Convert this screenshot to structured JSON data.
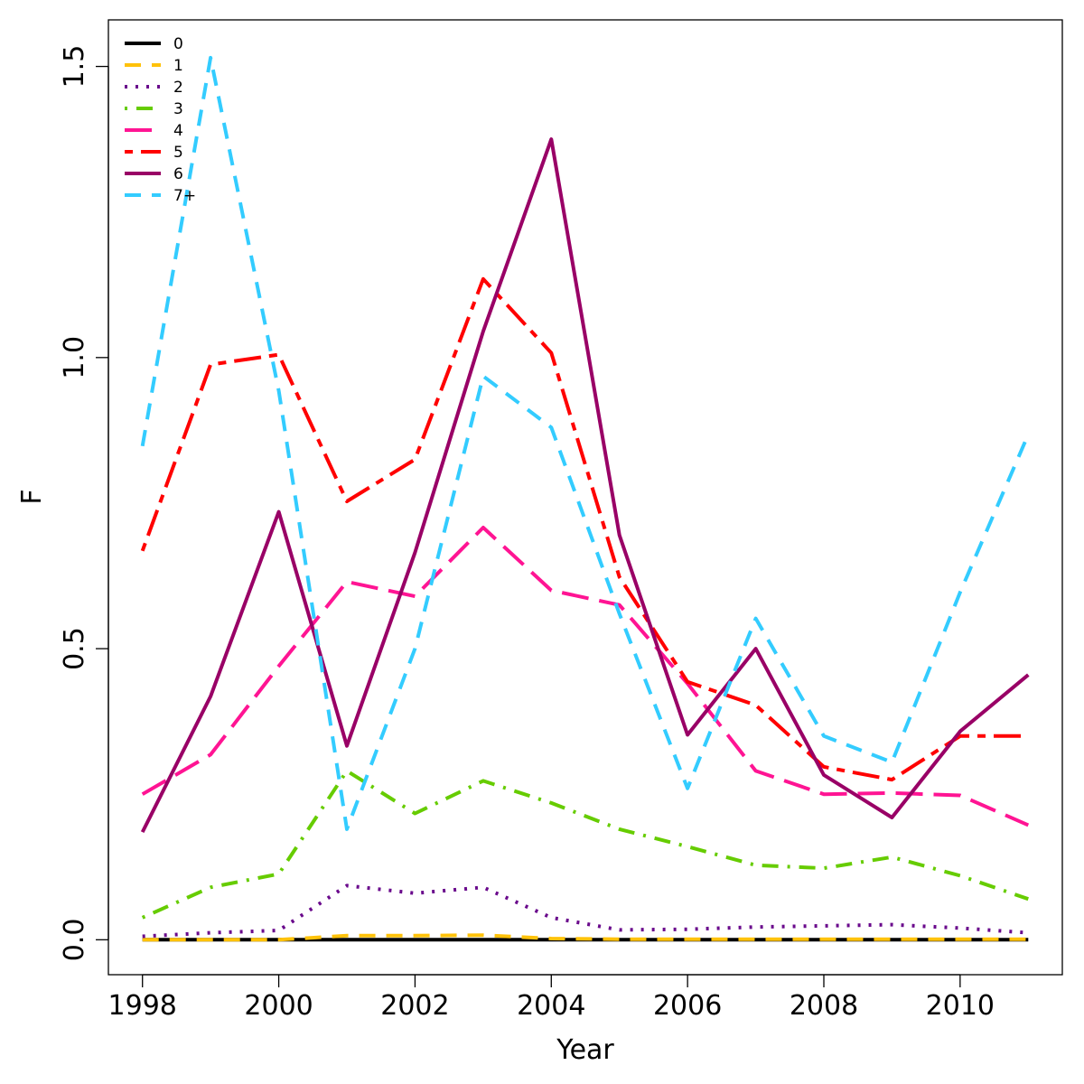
{
  "chart_data": {
    "type": "line",
    "xlabel": "Year",
    "ylabel": "F",
    "xlim": [
      1997.5,
      2011.5
    ],
    "ylim": [
      -0.06,
      1.58
    ],
    "xticks": [
      1998,
      2000,
      2002,
      2004,
      2006,
      2008,
      2010
    ],
    "yticks": [
      0.0,
      0.5,
      1.0,
      1.5
    ],
    "ytick_labels": [
      "0.0",
      "0.5",
      "1.0",
      "1.5"
    ],
    "legend_position": "top-left",
    "grid": false,
    "x": [
      1998,
      1999,
      2000,
      2001,
      2002,
      2003,
      2004,
      2005,
      2006,
      2007,
      2008,
      2009,
      2010,
      2011
    ],
    "series": [
      {
        "name": "0",
        "color": "#000000",
        "dash": "solid",
        "values": [
          0.0,
          0.0,
          0.0,
          0.0,
          0.0,
          0.0,
          0.0,
          0.0,
          0.0,
          0.0,
          0.0,
          0.0,
          0.0,
          0.0
        ]
      },
      {
        "name": "1",
        "color": "#FFC20A",
        "dash": "dashed",
        "values": [
          0.0,
          0.0,
          0.0,
          0.007,
          0.007,
          0.008,
          0.002,
          0.001,
          0.001,
          0.001,
          0.001,
          0.001,
          0.001,
          0.001
        ]
      },
      {
        "name": "2",
        "color": "#6A0A8C",
        "dash": "dotted",
        "values": [
          0.006,
          0.012,
          0.016,
          0.093,
          0.08,
          0.09,
          0.038,
          0.017,
          0.018,
          0.022,
          0.024,
          0.026,
          0.02,
          0.012
        ]
      },
      {
        "name": "3",
        "color": "#66CC00",
        "dash": "dotdash",
        "values": [
          0.038,
          0.09,
          0.113,
          0.29,
          0.217,
          0.273,
          0.235,
          0.19,
          0.16,
          0.128,
          0.123,
          0.142,
          0.11,
          0.07
        ]
      },
      {
        "name": "4",
        "color": "#FF1493",
        "dash": "longdash",
        "values": [
          0.25,
          0.318,
          0.47,
          0.615,
          0.59,
          0.708,
          0.6,
          0.575,
          0.44,
          0.29,
          0.25,
          0.252,
          0.248,
          0.197
        ]
      },
      {
        "name": "5",
        "color": "#FF0000",
        "dash": "twodash",
        "values": [
          0.668,
          0.988,
          1.005,
          0.753,
          0.825,
          1.135,
          1.008,
          0.623,
          0.443,
          0.403,
          0.297,
          0.275,
          0.35,
          0.35
        ]
      },
      {
        "name": "6",
        "color": "#990066",
        "dash": "solid",
        "values": [
          0.185,
          0.418,
          0.735,
          0.333,
          0.665,
          1.045,
          1.375,
          0.695,
          0.352,
          0.5,
          0.283,
          0.21,
          0.358,
          0.455
        ]
      },
      {
        "name": "7+",
        "color": "#33CCFF",
        "dash": "dashed",
        "values": [
          0.848,
          1.515,
          0.943,
          0.19,
          0.5,
          0.968,
          0.88,
          0.56,
          0.26,
          0.552,
          0.35,
          0.305,
          0.597,
          0.868
        ]
      }
    ]
  }
}
